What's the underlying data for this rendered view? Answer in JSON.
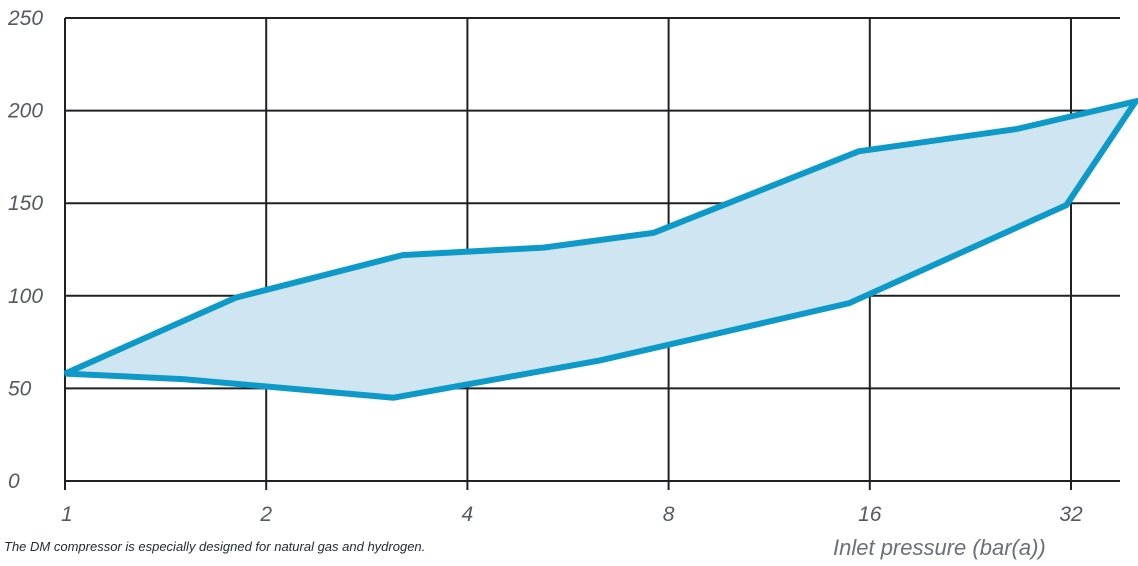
{
  "chart_data": {
    "type": "area",
    "xscale": "log2",
    "xlim": [
      1,
      40
    ],
    "ylim": [
      0,
      250
    ],
    "xticks": [
      1,
      2,
      4,
      8,
      16,
      32
    ],
    "xtick_labels": [
      "1",
      "2",
      "4",
      "8",
      "16",
      "32"
    ],
    "yticks": [
      0,
      50,
      100,
      150,
      200,
      250
    ],
    "ytick_labels": [
      "0",
      "50",
      "100",
      "150",
      "200",
      "250"
    ],
    "xlabel": "Inlet pressure (bar(a))",
    "ylabel": "",
    "grid": true,
    "series": [
      {
        "polygon": [
          [
            1.0,
            58
          ],
          [
            1.8,
            99
          ],
          [
            3.2,
            122
          ],
          [
            5.2,
            126
          ],
          [
            7.6,
            134
          ],
          [
            15.4,
            178
          ],
          [
            26.5,
            190
          ],
          [
            40.0,
            205
          ],
          [
            31.5,
            149
          ],
          [
            14.9,
            96
          ],
          [
            6.3,
            65
          ],
          [
            3.1,
            45
          ],
          [
            1.5,
            55
          ],
          [
            1.0,
            58
          ]
        ]
      }
    ],
    "colors": {
      "fill": "#cfe6f2",
      "stroke": "#0d9ac8",
      "grid": "#1f2124",
      "tick_text": "#555a60"
    }
  },
  "caption": "The DM compressor is especially designed for natural gas and hydrogen."
}
